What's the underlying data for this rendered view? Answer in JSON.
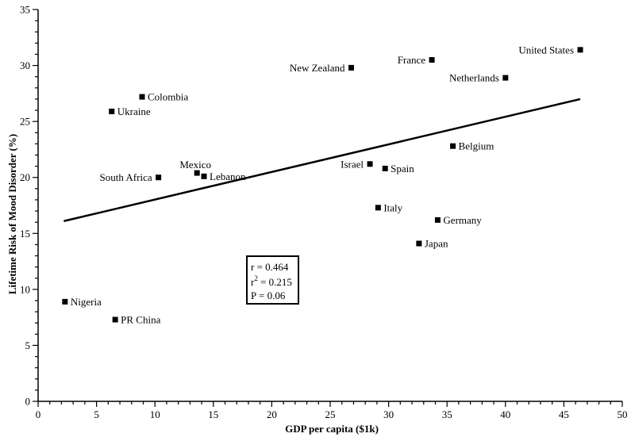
{
  "chart_data": {
    "type": "scatter",
    "xlabel": "GDP per capita ($1k)",
    "ylabel": "Lifetime Risk of Mood Disorder (%)",
    "xlim": [
      0,
      50
    ],
    "ylim": [
      0,
      35
    ],
    "x_ticks": [
      0,
      5,
      10,
      15,
      20,
      25,
      30,
      35,
      40,
      45,
      50
    ],
    "y_ticks": [
      0,
      5,
      10,
      15,
      20,
      25,
      30,
      35
    ],
    "grid": false,
    "points": [
      {
        "label": "United States",
        "x": 46.4,
        "y": 31.4,
        "label_pos": "left"
      },
      {
        "label": "France",
        "x": 33.7,
        "y": 30.5,
        "label_pos": "left"
      },
      {
        "label": "New Zealand",
        "x": 26.8,
        "y": 29.8,
        "label_pos": "left"
      },
      {
        "label": "Netherlands",
        "x": 40.0,
        "y": 28.9,
        "label_pos": "left"
      },
      {
        "label": "Colombia",
        "x": 8.9,
        "y": 27.2,
        "label_pos": "right"
      },
      {
        "label": "Ukraine",
        "x": 6.3,
        "y": 25.9,
        "label_pos": "right"
      },
      {
        "label": "Belgium",
        "x": 35.5,
        "y": 22.8,
        "label_pos": "right"
      },
      {
        "label": "Israel",
        "x": 28.4,
        "y": 21.2,
        "label_pos": "left"
      },
      {
        "label": "Spain",
        "x": 29.7,
        "y": 20.8,
        "label_pos": "right"
      },
      {
        "label": "Mexico",
        "x": 13.6,
        "y": 20.4,
        "label_pos": "above"
      },
      {
        "label": "Lebanon",
        "x": 14.2,
        "y": 20.1,
        "label_pos": "right"
      },
      {
        "label": "South Africa",
        "x": 10.3,
        "y": 20.0,
        "label_pos": "left"
      },
      {
        "label": "Italy",
        "x": 29.1,
        "y": 17.3,
        "label_pos": "right"
      },
      {
        "label": "Germany",
        "x": 34.2,
        "y": 16.2,
        "label_pos": "right"
      },
      {
        "label": "Japan",
        "x": 32.6,
        "y": 14.1,
        "label_pos": "right"
      },
      {
        "label": "Nigeria",
        "x": 2.3,
        "y": 8.9,
        "label_pos": "right"
      },
      {
        "label": "PR China",
        "x": 6.6,
        "y": 7.3,
        "label_pos": "right"
      }
    ],
    "trendline": {
      "x": [
        2.2,
        46.4
      ],
      "y": [
        16.1,
        27.0
      ]
    },
    "stats": {
      "r": "r = 0.464",
      "r2_prefix": "r",
      "r2_sup": "2",
      "r2_value": " = 0.215",
      "p": "P = 0.06"
    }
  }
}
